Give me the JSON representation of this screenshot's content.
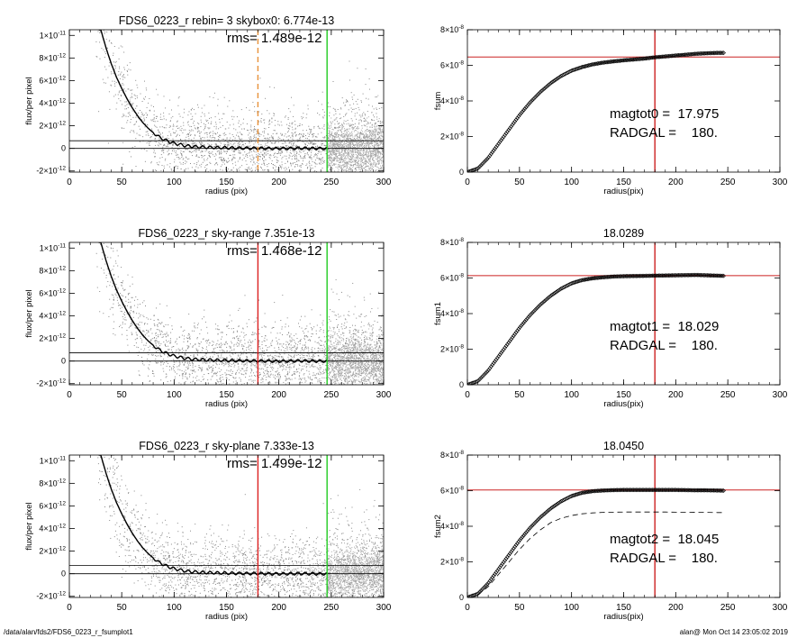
{
  "footer": {
    "path": "/data/alan/fds2/FDS6_0223_r_fsumplot1",
    "stamp": "alan@  Mon Oct 14 23:05:02 2019"
  },
  "chart_data": [
    {
      "type": "scatter",
      "title": "FDS6_0223_r rebin= 3    skybox0:  6.774e-13",
      "annotation": "rms= 1.489e-12",
      "xlabel": "radius (pix)",
      "ylabel": "flux/per pixel",
      "xlim": [
        0,
        300
      ],
      "ylim": [
        -2.1e-12,
        1.05e-11
      ],
      "xticks": [
        0,
        50,
        100,
        150,
        200,
        250,
        300
      ],
      "xtick_labels": [
        "0",
        "50",
        "100",
        "150",
        "200",
        "250",
        "300"
      ],
      "yticks": [
        -2e-12,
        0,
        2e-12,
        4e-12,
        6e-12,
        8e-12,
        1e-11
      ],
      "ytick_labels": [
        [
          "-2×10",
          "-12"
        ],
        [
          "0",
          ""
        ],
        [
          "2×10",
          "-12"
        ],
        [
          "4×10",
          "-12"
        ],
        [
          "6×10",
          "-12"
        ],
        [
          "8×10",
          "-12"
        ],
        [
          "1×10",
          "-11"
        ]
      ],
      "hlines": [
        0,
        6.774e-13
      ],
      "vlines": [
        {
          "x": 180,
          "color": "#e8923a",
          "style": "dashed"
        },
        {
          "x": 246,
          "color": "#22cc22",
          "style": "solid"
        }
      ],
      "profile": {
        "x": [
          30,
          35,
          40,
          45,
          50,
          55,
          60,
          65,
          70,
          75,
          80,
          85,
          90,
          95,
          100,
          110,
          120,
          130,
          140,
          150,
          160,
          170,
          180,
          190,
          200,
          210,
          220,
          230,
          240,
          246
        ],
        "y": [
          1.05e-11,
          8.9e-12,
          7.5e-12,
          6.3e-12,
          5.3e-12,
          4.4e-12,
          3.6e-12,
          2.9e-12,
          2.3e-12,
          1.8e-12,
          1.4e-12,
          1.05e-12,
          8e-13,
          6e-13,
          4.5e-13,
          2.5e-13,
          1.5e-13,
          1e-13,
          8e-14,
          5e-14,
          3e-14,
          2e-14,
          1e-14,
          0,
          -1e-14,
          0,
          2e-14,
          0,
          -1e-14,
          0
        ]
      }
    },
    {
      "type": "line",
      "title": "",
      "xlabel": "radius(pix)",
      "ylabel": "fsum",
      "xlim": [
        0,
        300
      ],
      "ylim": [
        0,
        8e-08
      ],
      "xticks": [
        0,
        50,
        100,
        150,
        200,
        250,
        300
      ],
      "xtick_labels": [
        "0",
        "50",
        "100",
        "150",
        "200",
        "250",
        "300"
      ],
      "yticks": [
        0,
        2e-08,
        4e-08,
        6e-08,
        8e-08
      ],
      "ytick_labels": [
        [
          "0",
          ""
        ],
        [
          "2×10",
          "-8"
        ],
        [
          "4×10",
          "-8"
        ],
        [
          "6×10",
          "-8"
        ],
        [
          "8×10",
          "-8"
        ]
      ],
      "hlines": [
        {
          "y": 6.47e-08,
          "color": "#cc2222"
        }
      ],
      "vlines": [
        {
          "x": 180,
          "color": "#cc2222"
        }
      ],
      "annotations": [
        "magtot0 =  17.975",
        "RADGAL =    180."
      ],
      "curve": {
        "x": [
          0,
          10,
          20,
          30,
          40,
          50,
          60,
          70,
          80,
          90,
          100,
          110,
          120,
          130,
          140,
          150,
          160,
          170,
          180,
          190,
          200,
          210,
          220,
          230,
          240,
          246
        ],
        "y": [
          0,
          2e-09,
          8e-09,
          1.6e-08,
          2.4e-08,
          3.2e-08,
          3.9e-08,
          4.5e-08,
          5e-08,
          5.4e-08,
          5.7e-08,
          5.9e-08,
          6.05e-08,
          6.15e-08,
          6.22e-08,
          6.28e-08,
          6.33e-08,
          6.38e-08,
          6.45e-08,
          6.5e-08,
          6.55e-08,
          6.6e-08,
          6.65e-08,
          6.68e-08,
          6.7e-08,
          6.7e-08
        ]
      }
    },
    {
      "type": "scatter",
      "title": "FDS6_0223_r sky-range  7.351e-13",
      "annotation": "rms= 1.468e-12",
      "xlabel": "radius (pix)",
      "ylabel": "flux/per pixel",
      "xlim": [
        0,
        300
      ],
      "ylim": [
        -2.1e-12,
        1.05e-11
      ],
      "xticks": [
        0,
        50,
        100,
        150,
        200,
        250,
        300
      ],
      "xtick_labels": [
        "0",
        "50",
        "100",
        "150",
        "200",
        "250",
        "300"
      ],
      "yticks": [
        -2e-12,
        0,
        2e-12,
        4e-12,
        6e-12,
        8e-12,
        1e-11
      ],
      "ytick_labels": [
        [
          "-2×10",
          "-12"
        ],
        [
          "0",
          ""
        ],
        [
          "2×10",
          "-12"
        ],
        [
          "4×10",
          "-12"
        ],
        [
          "6×10",
          "-12"
        ],
        [
          "8×10",
          "-12"
        ],
        [
          "1×10",
          "-11"
        ]
      ],
      "hlines": [
        0,
        7.351e-13
      ],
      "vlines": [
        {
          "x": 180,
          "color": "#dd2222",
          "style": "solid"
        },
        {
          "x": 246,
          "color": "#22cc22",
          "style": "solid"
        }
      ],
      "profile": {
        "x": [
          30,
          35,
          40,
          45,
          50,
          55,
          60,
          65,
          70,
          75,
          80,
          85,
          90,
          95,
          100,
          110,
          120,
          130,
          140,
          150,
          160,
          170,
          180,
          190,
          200,
          210,
          220,
          230,
          240,
          246
        ],
        "y": [
          1.05e-11,
          8.9e-12,
          7.5e-12,
          6.3e-12,
          5.3e-12,
          4.4e-12,
          3.6e-12,
          2.9e-12,
          2.3e-12,
          1.8e-12,
          1.4e-12,
          1.05e-12,
          8e-13,
          6e-13,
          4.5e-13,
          2.5e-13,
          1.5e-13,
          1e-13,
          8e-14,
          5e-14,
          3e-14,
          2e-14,
          1e-14,
          0,
          -1e-14,
          0,
          2e-14,
          0,
          -1e-14,
          0
        ]
      }
    },
    {
      "type": "line",
      "title": "18.0289",
      "xlabel": "radius(pix)",
      "ylabel": "fsum1",
      "xlim": [
        0,
        300
      ],
      "ylim": [
        0,
        8e-08
      ],
      "xticks": [
        0,
        50,
        100,
        150,
        200,
        250,
        300
      ],
      "xtick_labels": [
        "0",
        "50",
        "100",
        "150",
        "200",
        "250",
        "300"
      ],
      "yticks": [
        0,
        2e-08,
        4e-08,
        6e-08,
        8e-08
      ],
      "ytick_labels": [
        [
          "0",
          ""
        ],
        [
          "2×10",
          "-8"
        ],
        [
          "4×10",
          "-8"
        ],
        [
          "6×10",
          "-8"
        ],
        [
          "8×10",
          "-8"
        ]
      ],
      "hlines": [
        {
          "y": 6.13e-08,
          "color": "#cc2222"
        }
      ],
      "vlines": [
        {
          "x": 180,
          "color": "#cc2222"
        }
      ],
      "annotations": [
        "magtot1 =  18.029",
        "RADGAL =    180."
      ],
      "curve": {
        "x": [
          0,
          10,
          20,
          30,
          40,
          50,
          60,
          70,
          80,
          90,
          100,
          110,
          120,
          130,
          140,
          150,
          160,
          170,
          180,
          190,
          200,
          210,
          220,
          230,
          240,
          246
        ],
        "y": [
          0,
          2e-09,
          8e-09,
          1.6e-08,
          2.4e-08,
          3.2e-08,
          3.9e-08,
          4.5e-08,
          5e-08,
          5.4e-08,
          5.7e-08,
          5.88e-08,
          5.98e-08,
          6.04e-08,
          6.08e-08,
          6.1e-08,
          6.11e-08,
          6.12e-08,
          6.13e-08,
          6.14e-08,
          6.15e-08,
          6.16e-08,
          6.17e-08,
          6.15e-08,
          6.13e-08,
          6.12e-08
        ]
      }
    },
    {
      "type": "scatter",
      "title": "FDS6_0223_r sky-plane  7.333e-13",
      "annotation": "rms= 1.499e-12",
      "xlabel": "radius (pix)",
      "ylabel": "flux/per pixel",
      "xlim": [
        0,
        300
      ],
      "ylim": [
        -2.1e-12,
        1.05e-11
      ],
      "xticks": [
        0,
        50,
        100,
        150,
        200,
        250,
        300
      ],
      "xtick_labels": [
        "0",
        "50",
        "100",
        "150",
        "200",
        "250",
        "300"
      ],
      "yticks": [
        -2e-12,
        0,
        2e-12,
        4e-12,
        6e-12,
        8e-12,
        1e-11
      ],
      "ytick_labels": [
        [
          "-2×10",
          "-12"
        ],
        [
          "0",
          ""
        ],
        [
          "2×10",
          "-12"
        ],
        [
          "4×10",
          "-12"
        ],
        [
          "6×10",
          "-12"
        ],
        [
          "8×10",
          "-12"
        ],
        [
          "1×10",
          "-11"
        ]
      ],
      "hlines": [
        0,
        7.333e-13
      ],
      "vlines": [
        {
          "x": 180,
          "color": "#dd2222",
          "style": "solid"
        },
        {
          "x": 246,
          "color": "#22cc22",
          "style": "solid"
        }
      ],
      "profile": {
        "x": [
          30,
          35,
          40,
          45,
          50,
          55,
          60,
          65,
          70,
          75,
          80,
          85,
          90,
          95,
          100,
          110,
          120,
          130,
          140,
          150,
          160,
          170,
          180,
          190,
          200,
          210,
          220,
          230,
          240,
          246
        ],
        "y": [
          1.05e-11,
          8.9e-12,
          7.5e-12,
          6.3e-12,
          5.3e-12,
          4.4e-12,
          3.6e-12,
          2.9e-12,
          2.3e-12,
          1.8e-12,
          1.4e-12,
          1.05e-12,
          8e-13,
          6e-13,
          4.5e-13,
          2.5e-13,
          1.5e-13,
          1e-13,
          8e-14,
          5e-14,
          3e-14,
          2e-14,
          1e-14,
          0,
          -1e-14,
          0,
          2e-14,
          0,
          -1e-14,
          0
        ]
      }
    },
    {
      "type": "line",
      "title": "18.0450",
      "xlabel": "radius(pix)",
      "ylabel": "fsum2",
      "xlim": [
        0,
        300
      ],
      "ylim": [
        0,
        8e-08
      ],
      "xticks": [
        0,
        50,
        100,
        150,
        200,
        250,
        300
      ],
      "xtick_labels": [
        "0",
        "50",
        "100",
        "150",
        "200",
        "250",
        "300"
      ],
      "yticks": [
        0,
        2e-08,
        4e-08,
        6e-08,
        8e-08
      ],
      "ytick_labels": [
        [
          "0",
          ""
        ],
        [
          "2×10",
          "-8"
        ],
        [
          "4×10",
          "-8"
        ],
        [
          "6×10",
          "-8"
        ],
        [
          "8×10",
          "-8"
        ]
      ],
      "hlines": [
        {
          "y": 6.04e-08,
          "color": "#cc2222"
        }
      ],
      "vlines": [
        {
          "x": 180,
          "color": "#cc2222"
        }
      ],
      "annotations": [
        "magtot2 =  18.045",
        "RADGAL =    180."
      ],
      "curve": {
        "x": [
          0,
          10,
          20,
          30,
          40,
          50,
          60,
          70,
          80,
          90,
          100,
          110,
          120,
          130,
          140,
          150,
          160,
          170,
          180,
          190,
          200,
          210,
          220,
          230,
          240,
          246
        ],
        "y": [
          0,
          2e-09,
          8e-09,
          1.6e-08,
          2.4e-08,
          3.2e-08,
          3.9e-08,
          4.5e-08,
          5e-08,
          5.4e-08,
          5.7e-08,
          5.88e-08,
          5.97e-08,
          6.01e-08,
          6.03e-08,
          6.04e-08,
          6.04e-08,
          6.04e-08,
          6.04e-08,
          6.04e-08,
          6.04e-08,
          6.03e-08,
          6.02e-08,
          6.02e-08,
          6.01e-08,
          6e-08
        ]
      },
      "dashed_curve": {
        "x": [
          10,
          20,
          30,
          40,
          50,
          60,
          70,
          80,
          90,
          100,
          110,
          120,
          130,
          140,
          150,
          160,
          170,
          180,
          190,
          200,
          210,
          220,
          230,
          240,
          246
        ],
        "y": [
          1.5e-09,
          6e-09,
          1.3e-08,
          2e-08,
          2.7e-08,
          3.3e-08,
          3.8e-08,
          4.2e-08,
          4.45e-08,
          4.6e-08,
          4.7e-08,
          4.75e-08,
          4.78e-08,
          4.79e-08,
          4.8e-08,
          4.8e-08,
          4.8e-08,
          4.8e-08,
          4.8e-08,
          4.79e-08,
          4.79e-08,
          4.78e-08,
          4.78e-08,
          4.77e-08,
          4.77e-08
        ]
      }
    }
  ]
}
